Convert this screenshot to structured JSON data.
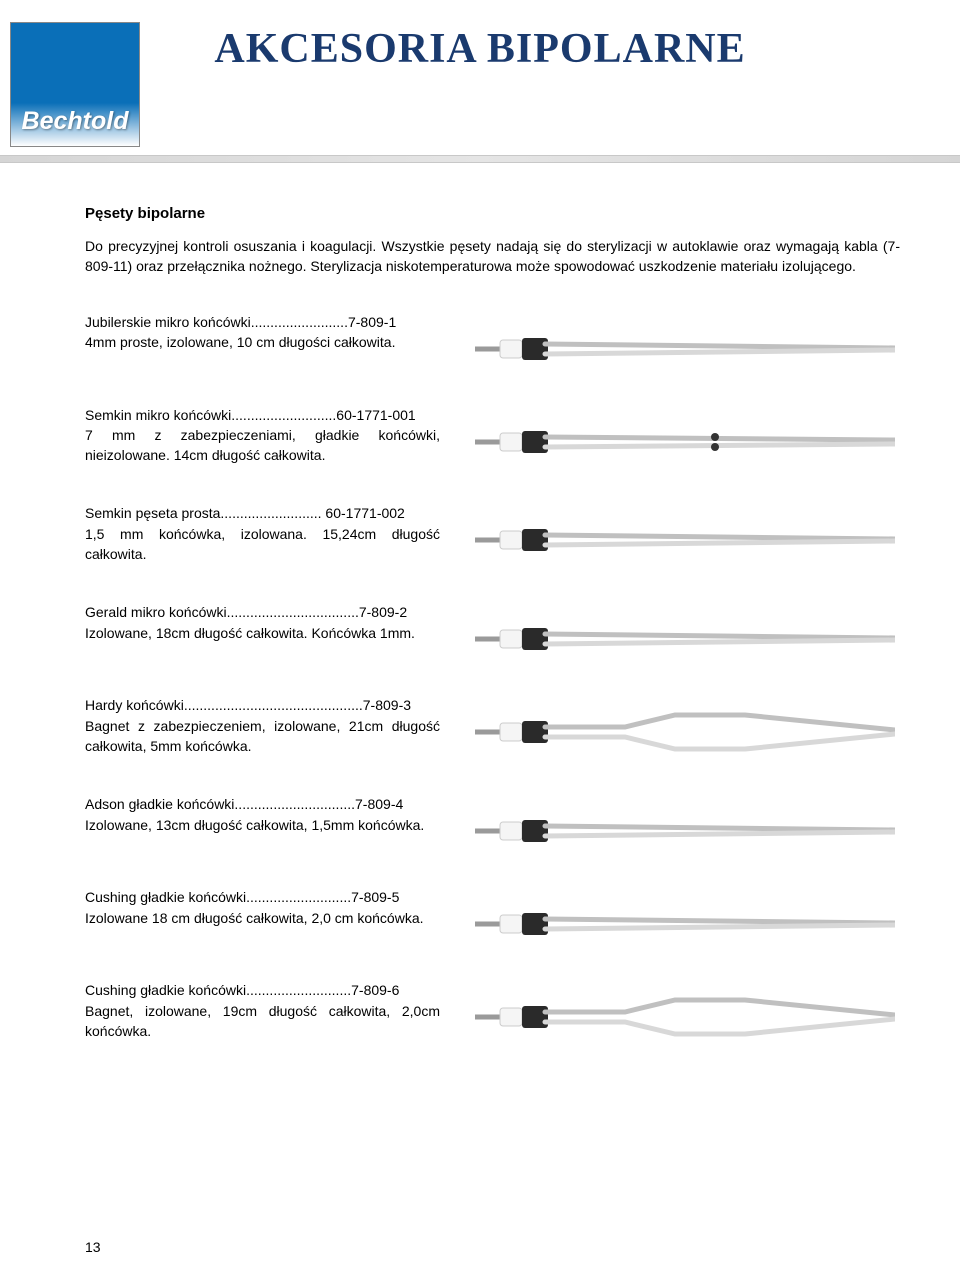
{
  "logo": {
    "brand": "Bechtold"
  },
  "title": "AKCESORIA BIPOLARNE",
  "section_title": "Pęsety bipolarne",
  "intro": "Do precyzyjnej kontroli osuszania i koagulacji. Wszystkie pęsety nadają się do sterylizacji w autoklawie oraz wymagają kabla (7-809-11) oraz przełącznika nożnego. Sterylizacja niskotemperaturowa może spowodować uszkodzenie materiału izolującego.",
  "products": [
    {
      "name": "Jubilerskie mikro końcówki",
      "dots": ".........................",
      "code": "7-809-1",
      "desc": "4mm proste, izolowane, 10 cm długości całkowita.",
      "style": "straight"
    },
    {
      "name": "Semkin mikro końcówki",
      "dots": "...........................",
      "code": "60-1771-001",
      "desc": "7 mm z zabezpieczeniami, gładkie końcówki, nieizolowane. 14cm długość całkowita.",
      "style": "guard"
    },
    {
      "name": "Semkin pęseta prosta",
      "dots": "..........................",
      "code": " 60-1771-002",
      "desc": "1,5 mm końcówka, izolowana. 15,24cm długość całkowita.",
      "style": "straight"
    },
    {
      "name": "Gerald mikro końcówki",
      "dots": "..................................",
      "code": "7-809-2",
      "desc": "Izolowane, 18cm długość całkowita. Końcówka 1mm.",
      "style": "straight"
    },
    {
      "name": "Hardy końcówki",
      "dots": "..............................................",
      "code": "7-809-3",
      "desc": "Bagnet z zabezpieczeniem, izolowane, 21cm długość całkowita, 5mm końcówka.",
      "style": "bayonet"
    },
    {
      "name": "Adson gładkie końcówki",
      "dots": "...............................",
      "code": "7-809-4",
      "desc": "Izolowane, 13cm długość całkowita, 1,5mm końcówka.",
      "style": "straight"
    },
    {
      "name": "Cushing gładkie końcówki",
      "dots": "...........................",
      "code": "7-809-5",
      "desc": "Izolowane 18 cm długość całkowita, 2,0 cm końcówka.",
      "style": "straight"
    },
    {
      "name": "Cushing gładkie końcówki",
      "dots": "...........................",
      "code": "7-809-6",
      "desc": "Bagnet, izolowane, 19cm długość całkowita, 2,0cm końcówka.",
      "style": "bayonet"
    }
  ],
  "page_number": "13",
  "colors": {
    "title": "#1a3a6e",
    "cable": "#9a9a9a",
    "conn_white": "#f5f5f5",
    "conn_black": "#2a2a2a",
    "metal": "#c0c0c0",
    "metal_light": "#d8d8d8"
  }
}
